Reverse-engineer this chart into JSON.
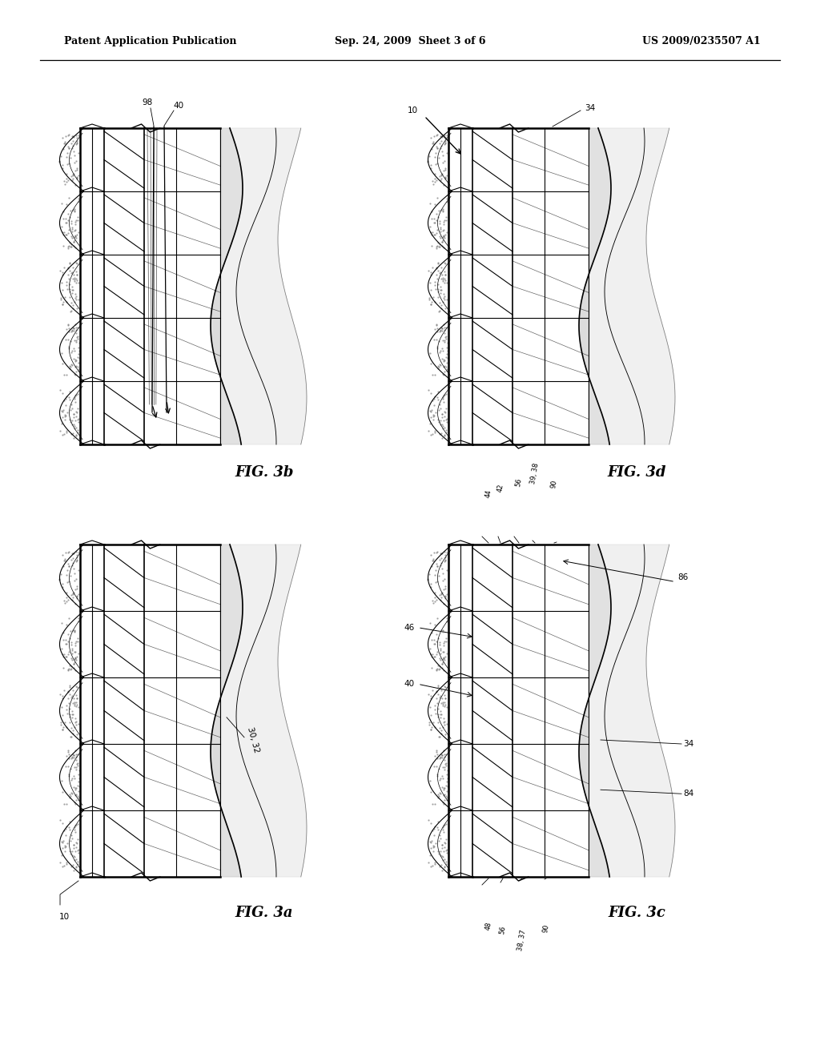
{
  "page_width": 10.24,
  "page_height": 13.2,
  "background": "#ffffff",
  "header_left": "Patent Application Publication",
  "header_mid": "Sep. 24, 2009  Sheet 3 of 6",
  "header_right": "US 2009/0235507 A1",
  "fig_3b_label": "FIG. 3b",
  "fig_3d_label": "FIG. 3d",
  "fig_3a_label": "FIG. 3a",
  "fig_3c_label": "FIG. 3c",
  "lfs": 7.5,
  "ffs": 13.0,
  "hfs": 9.0
}
